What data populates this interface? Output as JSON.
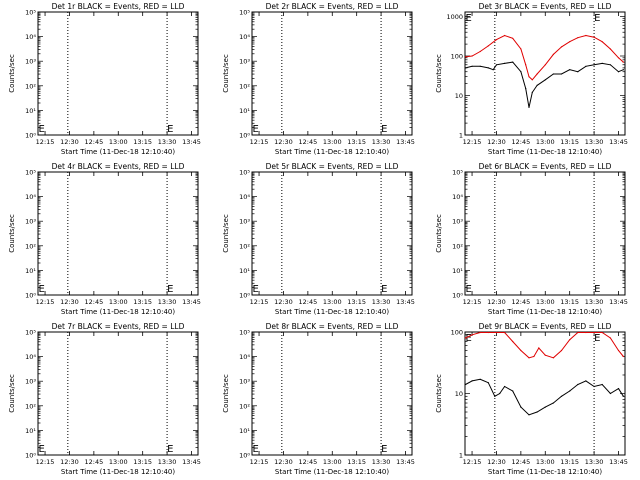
{
  "chart_data": [
    {
      "type": "line",
      "title": "Det 1r BLACK = Events, RED = LLD",
      "xlabel": "Start Time (11-Dec-18 12:10:40)",
      "ylabel": "Counts/sec",
      "x_ticks": [
        "12:15",
        "12:30",
        "12:45",
        "13:00",
        "13:15",
        "13:30",
        "13:45"
      ],
      "xlim": [
        "12:10:40",
        "13:49"
      ],
      "y_scale": "log",
      "y_ticks": [
        "10⁰",
        "10¹",
        "10²",
        "10³",
        "10⁴",
        "10⁵"
      ],
      "ylim": [
        1,
        100000
      ],
      "markers": [
        {
          "label": "E",
          "x": "12:11"
        },
        {
          "label": "E",
          "x": "13:30"
        }
      ],
      "vlines": [
        "12:29",
        "13:30"
      ],
      "series": []
    },
    {
      "type": "line",
      "title": "Det 2r BLACK = Events, RED = LLD",
      "xlabel": "Start Time (11-Dec-18 12:10:40)",
      "ylabel": "Counts/sec",
      "x_ticks": [
        "12:15",
        "12:30",
        "12:45",
        "13:00",
        "13:15",
        "13:30",
        "13:45"
      ],
      "xlim": [
        "12:10:40",
        "13:49"
      ],
      "y_scale": "log",
      "y_ticks": [
        "10⁰",
        "10¹",
        "10²",
        "10³",
        "10⁴",
        "10⁵"
      ],
      "ylim": [
        1,
        100000
      ],
      "markers": [
        {
          "label": "E",
          "x": "12:11"
        },
        {
          "label": "E",
          "x": "13:30"
        }
      ],
      "vlines": [
        "12:29",
        "13:30"
      ],
      "series": []
    },
    {
      "type": "line",
      "title": "Det 3r BLACK = Events, RED = LLD",
      "xlabel": "Start Time (11-Dec-18 12:10:40)",
      "ylabel": "Counts/sec",
      "x_ticks": [
        "12:15",
        "12:30",
        "12:45",
        "13:00",
        "13:15",
        "13:30",
        "13:45"
      ],
      "xlim": [
        "12:10:40",
        "13:49"
      ],
      "y_scale": "log",
      "y_ticks": [
        "1",
        "10",
        "100",
        "1000"
      ],
      "ylim": [
        1,
        1300
      ],
      "markers": [
        {
          "label": "E",
          "x": "12:11"
        },
        {
          "label": "E",
          "x": "13:30"
        }
      ],
      "vlines": [
        "12:29",
        "13:30"
      ],
      "series": [
        {
          "color": "#e00000",
          "x": [
            "12:11",
            "12:15",
            "12:20",
            "12:25",
            "12:30",
            "12:35",
            "12:40",
            "12:45",
            "12:48",
            "12:50",
            "12:52",
            "12:55",
            "13:00",
            "13:05",
            "13:10",
            "13:15",
            "13:20",
            "13:25",
            "13:30",
            "13:35",
            "13:40",
            "13:45",
            "13:48"
          ],
          "y": [
            95,
            100,
            130,
            180,
            260,
            330,
            280,
            150,
            60,
            30,
            25,
            35,
            60,
            110,
            170,
            230,
            290,
            330,
            300,
            230,
            150,
            90,
            70
          ]
        },
        {
          "color": "#000000",
          "x": [
            "12:11",
            "12:15",
            "12:20",
            "12:25",
            "12:28",
            "12:30",
            "12:35",
            "12:40",
            "12:45",
            "12:48",
            "12:50",
            "12:52",
            "12:55",
            "13:00",
            "13:05",
            "13:10",
            "13:15",
            "13:20",
            "13:25",
            "13:30",
            "13:35",
            "13:40",
            "13:45",
            "13:48"
          ],
          "y": [
            50,
            55,
            55,
            50,
            45,
            60,
            65,
            70,
            40,
            15,
            5,
            12,
            18,
            25,
            35,
            35,
            45,
            40,
            55,
            60,
            65,
            60,
            40,
            45
          ]
        }
      ]
    },
    {
      "type": "line",
      "title": "Det 4r BLACK = Events, RED = LLD",
      "xlabel": "Start Time (11-Dec-18 12:10:40)",
      "ylabel": "Counts/sec",
      "x_ticks": [
        "12:15",
        "12:30",
        "12:45",
        "13:00",
        "13:15",
        "13:30",
        "13:45"
      ],
      "xlim": [
        "12:10:40",
        "13:49"
      ],
      "y_scale": "log",
      "y_ticks": [
        "10⁰",
        "10¹",
        "10²",
        "10³",
        "10⁴",
        "10⁵"
      ],
      "ylim": [
        1,
        100000
      ],
      "markers": [
        {
          "label": "E",
          "x": "12:11"
        },
        {
          "label": "E",
          "x": "13:30"
        }
      ],
      "vlines": [
        "12:29",
        "13:30"
      ],
      "series": []
    },
    {
      "type": "line",
      "title": "Det 5r BLACK = Events, RED = LLD",
      "xlabel": "Start Time (11-Dec-18 12:10:40)",
      "ylabel": "Counts/sec",
      "x_ticks": [
        "12:15",
        "12:30",
        "12:45",
        "13:00",
        "13:15",
        "13:30",
        "13:45"
      ],
      "xlim": [
        "12:10:40",
        "13:49"
      ],
      "y_scale": "log",
      "y_ticks": [
        "10⁰",
        "10¹",
        "10²",
        "10³",
        "10⁴",
        "10⁵"
      ],
      "ylim": [
        1,
        100000
      ],
      "markers": [
        {
          "label": "E",
          "x": "12:11"
        },
        {
          "label": "E",
          "x": "13:30"
        }
      ],
      "vlines": [
        "12:29",
        "13:30"
      ],
      "series": []
    },
    {
      "type": "line",
      "title": "Det 6r BLACK = Events, RED = LLD",
      "xlabel": "Start Time (11-Dec-18 12:10:40)",
      "ylabel": "Counts/sec",
      "x_ticks": [
        "12:15",
        "12:30",
        "12:45",
        "13:00",
        "13:15",
        "13:30",
        "13:45"
      ],
      "xlim": [
        "12:10:40",
        "13:49"
      ],
      "y_scale": "log",
      "y_ticks": [
        "10⁰",
        "10¹",
        "10²",
        "10³",
        "10⁴",
        "10⁵"
      ],
      "ylim": [
        1,
        100000
      ],
      "markers": [
        {
          "label": "E",
          "x": "12:11"
        },
        {
          "label": "E",
          "x": "13:30"
        }
      ],
      "vlines": [
        "12:29",
        "13:30"
      ],
      "series": []
    },
    {
      "type": "line",
      "title": "Det 7r BLACK = Events, RED = LLD",
      "xlabel": "Start Time (11-Dec-18 12:10:40)",
      "ylabel": "Counts/sec",
      "x_ticks": [
        "12:15",
        "12:30",
        "12:45",
        "13:00",
        "13:15",
        "13:30",
        "13:45"
      ],
      "xlim": [
        "12:10:40",
        "13:49"
      ],
      "y_scale": "log",
      "y_ticks": [
        "10⁰",
        "10¹",
        "10²",
        "10³",
        "10⁴",
        "10⁵"
      ],
      "ylim": [
        1,
        100000
      ],
      "markers": [
        {
          "label": "E",
          "x": "12:11"
        },
        {
          "label": "E",
          "x": "13:30"
        }
      ],
      "vlines": [
        "12:29",
        "13:30"
      ],
      "series": []
    },
    {
      "type": "line",
      "title": "Det 8r BLACK = Events, RED = LLD",
      "xlabel": "Start Time (11-Dec-18 12:10:40)",
      "ylabel": "Counts/sec",
      "x_ticks": [
        "12:15",
        "12:30",
        "12:45",
        "13:00",
        "13:15",
        "13:30",
        "13:45"
      ],
      "xlim": [
        "12:10:40",
        "13:49"
      ],
      "y_scale": "log",
      "y_ticks": [
        "10⁰",
        "10¹",
        "10²",
        "10³",
        "10⁴",
        "10⁵"
      ],
      "ylim": [
        1,
        100000
      ],
      "markers": [
        {
          "label": "E",
          "x": "12:11"
        },
        {
          "label": "E",
          "x": "13:30"
        }
      ],
      "vlines": [
        "12:29",
        "13:30"
      ],
      "series": []
    },
    {
      "type": "line",
      "title": "Det 9r BLACK = Events, RED = LLD",
      "xlabel": "Start Time (11-Dec-18 12:10:40)",
      "ylabel": "Counts/sec",
      "x_ticks": [
        "12:15",
        "12:30",
        "12:45",
        "13:00",
        "13:15",
        "13:30",
        "13:45"
      ],
      "xlim": [
        "12:10:40",
        "13:49"
      ],
      "y_scale": "log",
      "y_ticks": [
        "1",
        "10",
        "100"
      ],
      "ylim": [
        1,
        100
      ],
      "markers": [
        {
          "label": "E",
          "x": "12:11"
        },
        {
          "label": "E",
          "x": "13:30"
        }
      ],
      "vlines": [
        "12:29",
        "13:30"
      ],
      "series": [
        {
          "color": "#e00000",
          "x": [
            "12:11",
            "12:15",
            "12:20",
            "12:25",
            "12:30",
            "12:35",
            "12:40",
            "12:45",
            "12:50",
            "12:53",
            "12:56",
            "13:00",
            "13:05",
            "13:10",
            "13:15",
            "13:20",
            "13:25",
            "13:30",
            "13:35",
            "13:40",
            "13:45",
            "13:48"
          ],
          "y": [
            80,
            90,
            100,
            100,
            100,
            100,
            70,
            50,
            38,
            40,
            55,
            42,
            38,
            50,
            75,
            100,
            100,
            100,
            100,
            80,
            50,
            40
          ]
        },
        {
          "color": "#000000",
          "x": [
            "12:11",
            "12:15",
            "12:20",
            "12:25",
            "12:29",
            "12:32",
            "12:35",
            "12:40",
            "12:45",
            "12:50",
            "12:55",
            "13:00",
            "13:05",
            "13:10",
            "13:15",
            "13:20",
            "13:25",
            "13:30",
            "13:35",
            "13:40",
            "13:45",
            "13:48"
          ],
          "y": [
            14,
            16,
            17,
            15,
            9,
            10,
            13,
            11,
            6,
            4.5,
            5,
            6,
            7,
            9,
            11,
            14,
            16,
            13,
            14,
            10,
            12,
            9
          ]
        }
      ]
    }
  ]
}
